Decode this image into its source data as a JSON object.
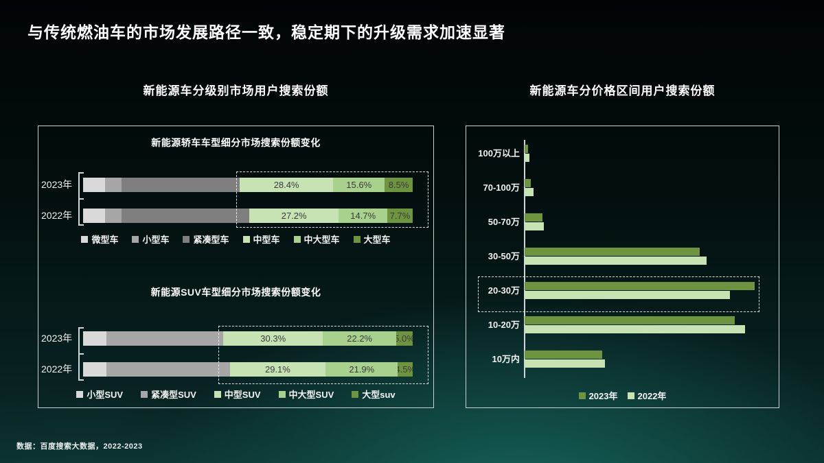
{
  "slide": {
    "title": "与传统燃油车的市场发展路径一致，稳定期下的升级需求加速显著",
    "footer": "数据：百度搜索大数据，2022-2023"
  },
  "left_section": {
    "title": "新能源车分级别市场用户搜索份额"
  },
  "right_section": {
    "title": "新能源车分价格区间用户搜索份额"
  },
  "colors": {
    "gray_light": "#d9d9d9",
    "gray_mid": "#a6a6a6",
    "gray_dark": "#7f7f7f",
    "green_light": "#c8e3b3",
    "green_mid": "#a9d18e",
    "green_dark": "#6f9440",
    "panel_border": "#c6d2d2",
    "label_text": "#3a3a3a"
  },
  "chart_data": [
    {
      "type": "bar",
      "subtype": "stacked-horizontal",
      "title": "新能源轿车车型细分市场搜索份额变化",
      "categories": [
        "2023年",
        "2022年"
      ],
      "unit": "%",
      "series": [
        {
          "name": "微型车",
          "color": "#d9d9d9",
          "labeled": false,
          "values": [
            6.7,
            6.7
          ]
        },
        {
          "name": "小型车",
          "color": "#a6a6a6",
          "labeled": false,
          "values": [
            5.0,
            5.0
          ]
        },
        {
          "name": "紧凑型车",
          "color": "#7f7f7f",
          "labeled": false,
          "values": [
            35.8,
            38.7
          ]
        },
        {
          "name": "中型车",
          "color": "#c8e3b3",
          "labeled": true,
          "values": [
            28.4,
            27.2
          ]
        },
        {
          "name": "中大型车",
          "color": "#a9d18e",
          "labeled": true,
          "values": [
            15.6,
            14.7
          ]
        },
        {
          "name": "大型车",
          "color": "#6f9440",
          "labeled": true,
          "values": [
            8.5,
            7.7
          ]
        }
      ],
      "shown_labels": [
        "28.4%",
        "15.6%",
        "8.5%",
        "27.2%",
        "14.7%",
        "7.7%"
      ],
      "highlight": "green segments (中型车/中大型车/大型车) outlined with dashed box",
      "note": "gray segment values estimated from bar pixel lengths; green values read from data labels"
    },
    {
      "type": "bar",
      "subtype": "stacked-horizontal",
      "title": "新能源SUV车型细分市场搜索份额变化",
      "categories": [
        "2023年",
        "2022年"
      ],
      "unit": "%",
      "series": [
        {
          "name": "小型SUV",
          "color": "#d9d9d9",
          "labeled": false,
          "values": [
            7.0,
            7.0
          ]
        },
        {
          "name": "紧凑型SUV",
          "color": "#a6a6a6",
          "labeled": false,
          "values": [
            35.5,
            37.5
          ]
        },
        {
          "name": "中型SUV",
          "color": "#c8e3b3",
          "labeled": true,
          "values": [
            30.3,
            29.1
          ]
        },
        {
          "name": "中大型SUV",
          "color": "#a9d18e",
          "labeled": true,
          "values": [
            22.2,
            21.9
          ]
        },
        {
          "name": "大型suv",
          "color": "#6f9440",
          "labeled": true,
          "values": [
            5.0,
            4.5
          ]
        }
      ],
      "shown_labels": [
        "30.3%",
        "22.2%",
        "5.0%",
        "29.1%",
        "21.9%",
        "4.5%"
      ],
      "highlight": "green segments (中型SUV/中大型SUV/大型suv) outlined with dashed box",
      "note": "gray segment values estimated from bar pixel lengths; green values read from data labels"
    },
    {
      "type": "bar",
      "subtype": "grouped-horizontal",
      "title": "新能源车分价格区间用户搜索份额",
      "categories": [
        "100万以上",
        "70-100万",
        "50-70万",
        "30-50万",
        "20-30万",
        "10-20万",
        "10万内"
      ],
      "unit": "%",
      "series": [
        {
          "name": "2023年",
          "color": "#6f9440",
          "values": [
            0.5,
            0.9,
            2.5,
            24.3,
            31.9,
            29.1,
            10.8
          ]
        },
        {
          "name": "2022年",
          "color": "#c8e3b3",
          "values": [
            0.7,
            1.2,
            2.7,
            25.2,
            28.5,
            30.6,
            11.1
          ]
        }
      ],
      "highlight": "20-30万 row outlined with dashed box",
      "legend_position": "bottom center",
      "note": "values estimated from bar pixel lengths (no numeric data labels shown)"
    }
  ]
}
